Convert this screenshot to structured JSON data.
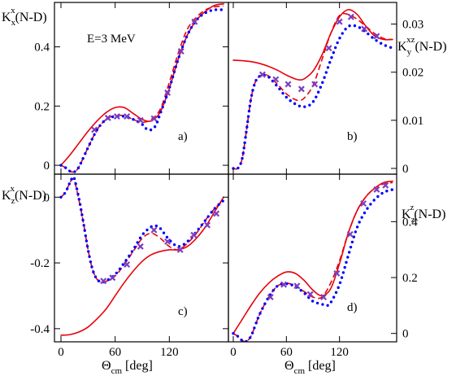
{
  "chart_data": [
    {
      "panel": "a)",
      "type": "line",
      "ylabel": {
        "main": "K",
        "sup": "x",
        "sub": "x",
        "tail": "(N-D)"
      },
      "annotation": "E=3 MeV",
      "xlim": [
        0,
        180
      ],
      "ylim": [
        -0.03,
        0.55
      ],
      "yticks": [
        0,
        0.2,
        0.4
      ],
      "ytick_labels": [
        "0",
        "0.2",
        "0.4"
      ],
      "series": [
        {
          "style": "solid-red",
          "x": [
            0,
            10,
            20,
            30,
            40,
            50,
            60,
            70,
            80,
            90,
            100,
            110,
            120,
            130,
            140,
            150,
            160,
            170,
            180
          ],
          "y": [
            0,
            0.035,
            0.075,
            0.115,
            0.15,
            0.178,
            0.195,
            0.195,
            0.175,
            0.155,
            0.15,
            0.18,
            0.26,
            0.36,
            0.44,
            0.49,
            0.52,
            0.54,
            0.545
          ]
        },
        {
          "style": "dashed-red",
          "x": [
            0,
            5,
            10,
            15,
            20,
            30,
            40,
            50,
            60,
            70,
            80,
            90,
            100,
            110,
            120,
            130,
            140,
            150,
            160,
            170,
            180
          ],
          "y": [
            0,
            -0.008,
            -0.02,
            -0.022,
            -0.005,
            0.06,
            0.12,
            0.155,
            0.168,
            0.167,
            0.155,
            0.145,
            0.155,
            0.19,
            0.28,
            0.38,
            0.46,
            0.5,
            0.525,
            0.535,
            0.538
          ]
        },
        {
          "style": "dotted-blue",
          "x": [
            0,
            5,
            10,
            15,
            20,
            30,
            40,
            50,
            60,
            70,
            80,
            90,
            95,
            100,
            105,
            110,
            120,
            130,
            140,
            150,
            160,
            170,
            180
          ],
          "y": [
            0,
            -0.008,
            -0.02,
            -0.022,
            -0.005,
            0.06,
            0.12,
            0.155,
            0.165,
            0.165,
            0.155,
            0.138,
            0.122,
            0.12,
            0.135,
            0.175,
            0.26,
            0.36,
            0.44,
            0.49,
            0.515,
            0.525,
            0.525
          ]
        },
        {
          "style": "purple-x",
          "x": [
            37,
            52,
            62,
            73,
            88,
            103,
            118,
            133,
            148
          ],
          "y": [
            0.12,
            0.16,
            0.165,
            0.165,
            0.152,
            0.158,
            0.245,
            0.385,
            0.485
          ]
        }
      ]
    },
    {
      "panel": "b)",
      "type": "line",
      "ylabel": {
        "main": "K",
        "sup": "xz",
        "sub": "y",
        "tail": "(N-D)"
      },
      "xlim": [
        0,
        180
      ],
      "ylim": [
        -0.0012,
        0.0345
      ],
      "yticks": [
        0,
        0.01,
        0.02,
        0.03
      ],
      "ytick_labels": [
        "0",
        "0.01",
        "0.02",
        "0.03"
      ],
      "series": [
        {
          "style": "solid-red",
          "x": [
            0,
            10,
            20,
            30,
            40,
            50,
            60,
            70,
            75,
            80,
            90,
            100,
            110,
            120,
            130,
            140,
            150,
            160,
            170,
            180
          ],
          "y": [
            0.0225,
            0.0224,
            0.0222,
            0.0218,
            0.0212,
            0.0204,
            0.0194,
            0.0186,
            0.0184,
            0.0186,
            0.0202,
            0.0235,
            0.028,
            0.0315,
            0.033,
            0.032,
            0.0295,
            0.0275,
            0.0268,
            0.0268
          ]
        },
        {
          "style": "dashed-red",
          "x": [
            0,
            5,
            10,
            15,
            20,
            25,
            30,
            35,
            40,
            50,
            60,
            70,
            75,
            80,
            90,
            100,
            110,
            120,
            130,
            140,
            150,
            160,
            170,
            180
          ],
          "y": [
            0,
            0,
            0.002,
            0.008,
            0.0145,
            0.018,
            0.0192,
            0.0195,
            0.0192,
            0.0175,
            0.0155,
            0.0143,
            0.0142,
            0.0146,
            0.0172,
            0.0225,
            0.028,
            0.0318,
            0.032,
            0.031,
            0.0295,
            0.028,
            0.027,
            0.0268
          ]
        },
        {
          "style": "dotted-blue",
          "x": [
            0,
            5,
            10,
            15,
            20,
            25,
            30,
            35,
            40,
            50,
            60,
            70,
            80,
            90,
            100,
            110,
            120,
            130,
            140,
            150,
            160,
            170,
            180
          ],
          "y": [
            0,
            0,
            0.002,
            0.008,
            0.0145,
            0.018,
            0.0192,
            0.0194,
            0.019,
            0.017,
            0.0148,
            0.0134,
            0.0128,
            0.0138,
            0.0175,
            0.0225,
            0.027,
            0.0295,
            0.0295,
            0.0283,
            0.0268,
            0.0257,
            0.025
          ]
        },
        {
          "style": "purple-x",
          "x": [
            33,
            48,
            62,
            77,
            92,
            108,
            120,
            133,
            148,
            162
          ],
          "y": [
            0.0195,
            0.0185,
            0.0175,
            0.0165,
            0.0175,
            0.025,
            0.0305,
            0.0315,
            0.029,
            0.0275
          ]
        }
      ]
    },
    {
      "panel": "c)",
      "type": "line",
      "ylabel": {
        "main": "K",
        "sup": "x",
        "sub": "z",
        "tail": "(N-D)"
      },
      "xlim": [
        0,
        180
      ],
      "ylim": [
        -0.44,
        0.07
      ],
      "yticks": [
        0,
        -0.2,
        -0.4
      ],
      "ytick_labels": [
        "0",
        "-0.2",
        "-0.4"
      ],
      "series": [
        {
          "style": "solid-red",
          "x": [
            0,
            10,
            20,
            30,
            40,
            50,
            60,
            70,
            80,
            90,
            100,
            110,
            120,
            130,
            140,
            150,
            160,
            170,
            180
          ],
          "y": [
            -0.42,
            -0.418,
            -0.41,
            -0.395,
            -0.37,
            -0.34,
            -0.3,
            -0.26,
            -0.225,
            -0.195,
            -0.175,
            -0.165,
            -0.16,
            -0.16,
            -0.15,
            -0.125,
            -0.09,
            -0.045,
            0
          ]
        },
        {
          "style": "dashed-red",
          "x": [
            0,
            5,
            10,
            13,
            15,
            20,
            25,
            30,
            35,
            40,
            45,
            50,
            60,
            70,
            80,
            90,
            100,
            110,
            120,
            130,
            140,
            150,
            160,
            170,
            180
          ],
          "y": [
            0,
            0.015,
            0.045,
            0.055,
            0.05,
            -0.01,
            -0.08,
            -0.16,
            -0.22,
            -0.25,
            -0.258,
            -0.256,
            -0.24,
            -0.205,
            -0.165,
            -0.125,
            -0.11,
            -0.125,
            -0.15,
            -0.16,
            -0.14,
            -0.11,
            -0.07,
            -0.035,
            -0.01
          ]
        },
        {
          "style": "dotted-blue",
          "x": [
            0,
            5,
            10,
            13,
            15,
            20,
            25,
            30,
            35,
            40,
            45,
            50,
            60,
            70,
            80,
            90,
            100,
            105,
            110,
            120,
            130,
            140,
            150,
            160,
            170,
            180
          ],
          "y": [
            0,
            0.015,
            0.045,
            0.06,
            0.055,
            -0.005,
            -0.08,
            -0.16,
            -0.22,
            -0.25,
            -0.258,
            -0.255,
            -0.235,
            -0.2,
            -0.16,
            -0.115,
            -0.09,
            -0.087,
            -0.095,
            -0.13,
            -0.15,
            -0.135,
            -0.105,
            -0.07,
            -0.035,
            -0.01
          ]
        },
        {
          "style": "purple-x",
          "x": [
            47,
            57,
            73,
            88,
            103,
            118,
            132,
            147,
            162,
            172
          ],
          "y": [
            -0.255,
            -0.245,
            -0.205,
            -0.15,
            -0.1,
            -0.135,
            -0.16,
            -0.115,
            -0.085,
            -0.05
          ]
        }
      ]
    },
    {
      "panel": "d)",
      "type": "line",
      "ylabel": {
        "main": "K",
        "sup": "z",
        "sub": "z",
        "tail": "(N-D)"
      },
      "xlim": [
        0,
        180
      ],
      "ylim": [
        -0.03,
        0.57
      ],
      "yticks": [
        0,
        0.2,
        0.4
      ],
      "ytick_labels": [
        "0",
        "0.2",
        "0.4"
      ],
      "series": [
        {
          "style": "solid-red",
          "x": [
            0,
            10,
            20,
            30,
            40,
            50,
            60,
            70,
            80,
            90,
            100,
            110,
            120,
            130,
            140,
            150,
            160,
            170,
            180
          ],
          "y": [
            0,
            0.05,
            0.1,
            0.145,
            0.18,
            0.205,
            0.22,
            0.215,
            0.19,
            0.155,
            0.135,
            0.16,
            0.25,
            0.36,
            0.44,
            0.49,
            0.52,
            0.54,
            0.545
          ]
        },
        {
          "style": "dashed-red",
          "x": [
            0,
            5,
            10,
            15,
            20,
            25,
            30,
            40,
            50,
            60,
            70,
            80,
            90,
            100,
            110,
            120,
            130,
            140,
            150,
            160,
            170,
            180
          ],
          "y": [
            0,
            -0.01,
            -0.025,
            -0.028,
            -0.01,
            0.03,
            0.07,
            0.13,
            0.17,
            0.18,
            0.17,
            0.15,
            0.13,
            0.13,
            0.18,
            0.26,
            0.36,
            0.44,
            0.49,
            0.52,
            0.535,
            0.54
          ]
        },
        {
          "style": "dotted-blue",
          "x": [
            0,
            5,
            10,
            15,
            20,
            25,
            30,
            40,
            50,
            60,
            70,
            80,
            90,
            100,
            105,
            110,
            120,
            130,
            140,
            150,
            160,
            170,
            180
          ],
          "y": [
            0,
            -0.01,
            -0.025,
            -0.028,
            -0.01,
            0.03,
            0.07,
            0.13,
            0.17,
            0.178,
            0.168,
            0.145,
            0.115,
            0.105,
            0.1,
            0.11,
            0.175,
            0.28,
            0.38,
            0.44,
            0.48,
            0.505,
            0.515
          ]
        },
        {
          "style": "purple-x",
          "x": [
            42,
            57,
            72,
            87,
            102,
            117,
            132,
            147,
            162,
            172
          ],
          "y": [
            0.13,
            0.175,
            0.17,
            0.14,
            0.13,
            0.215,
            0.355,
            0.465,
            0.515,
            0.53
          ]
        }
      ]
    }
  ],
  "xaxis": {
    "xticks": [
      0,
      60,
      120
    ],
    "xtick_labels": [
      "0",
      "60",
      "120"
    ],
    "label": {
      "main": "Θ",
      "sub": "cm",
      "tail": " [deg]"
    }
  },
  "colors": {
    "solid": "#e8000b",
    "dashed": "#e8000b",
    "dotted": "#0000ff",
    "markers": "#7b3fbf",
    "frame": "#000000"
  }
}
